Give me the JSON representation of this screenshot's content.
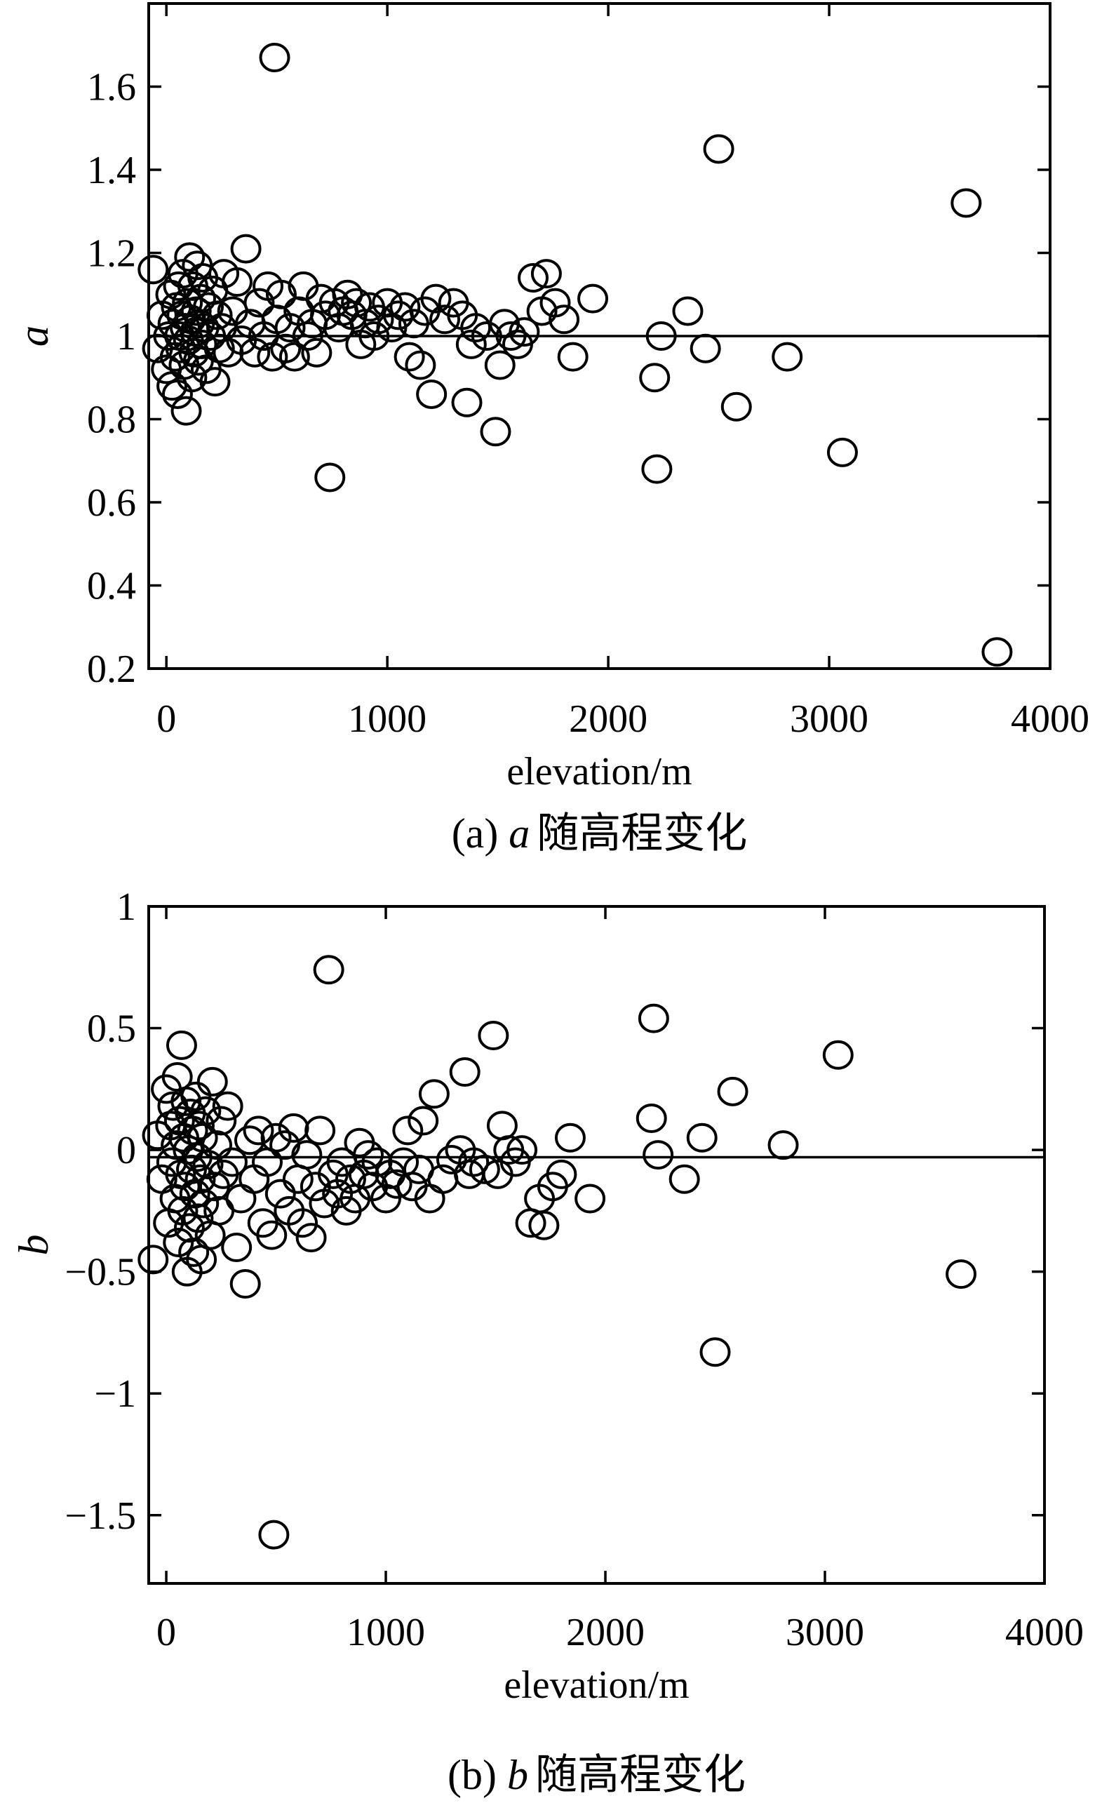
{
  "chart_data": [
    {
      "id": "a",
      "type": "scatter",
      "title": "",
      "xlabel": "elevation/m",
      "ylabel": "a",
      "caption": {
        "prefix": "(a) ",
        "var": "a",
        "suffix": "随高程变化"
      },
      "xlim": [
        -80,
        4000
      ],
      "ylim": [
        0.2,
        1.8
      ],
      "xticks": [
        0,
        1000,
        2000,
        3000,
        4000
      ],
      "xtick_labels": [
        "0",
        "1000",
        "2000",
        "3000",
        "4000"
      ],
      "yticks": [
        0.2,
        0.4,
        0.6,
        0.8,
        1.0,
        1.2,
        1.4,
        1.6
      ],
      "ytick_labels": [
        "0.2",
        "0.4",
        "0.6",
        "0.8",
        "1",
        "1.2",
        "1.4",
        "1.6"
      ],
      "reference_line_y": 1.0,
      "grid": false,
      "marker": "open-circle",
      "points": [
        [
          -60,
          1.16
        ],
        [
          -40,
          0.97
        ],
        [
          -20,
          1.05
        ],
        [
          0,
          0.92
        ],
        [
          10,
          1.0
        ],
        [
          20,
          1.1
        ],
        [
          25,
          0.88
        ],
        [
          30,
          1.03
        ],
        [
          40,
          0.95
        ],
        [
          45,
          1.07
        ],
        [
          50,
          0.86
        ],
        [
          55,
          1.12
        ],
        [
          60,
          1.0
        ],
        [
          65,
          0.97
        ],
        [
          70,
          1.05
        ],
        [
          75,
          1.15
        ],
        [
          80,
          0.93
        ],
        [
          85,
          1.02
        ],
        [
          90,
          0.82
        ],
        [
          95,
          1.08
        ],
        [
          100,
          0.99
        ],
        [
          105,
          1.19
        ],
        [
          110,
          1.04
        ],
        [
          115,
          0.9
        ],
        [
          120,
          1.12
        ],
        [
          125,
          0.96
        ],
        [
          130,
          1.01
        ],
        [
          135,
          1.06
        ],
        [
          140,
          1.17
        ],
        [
          145,
          0.94
        ],
        [
          150,
          1.03
        ],
        [
          155,
          1.09
        ],
        [
          160,
          0.98
        ],
        [
          165,
          1.14
        ],
        [
          170,
          1.02
        ],
        [
          180,
          0.92
        ],
        [
          190,
          1.07
        ],
        [
          200,
          1.0
        ],
        [
          210,
          1.11
        ],
        [
          220,
          0.89
        ],
        [
          230,
          1.05
        ],
        [
          240,
          0.97
        ],
        [
          250,
          1.02
        ],
        [
          260,
          1.15
        ],
        [
          280,
          0.96
        ],
        [
          300,
          1.06
        ],
        [
          320,
          1.13
        ],
        [
          340,
          0.99
        ],
        [
          360,
          1.21
        ],
        [
          380,
          1.03
        ],
        [
          400,
          0.96
        ],
        [
          420,
          1.08
        ],
        [
          440,
          1.0
        ],
        [
          460,
          1.12
        ],
        [
          480,
          0.95
        ],
        [
          490,
          1.67
        ],
        [
          500,
          1.04
        ],
        [
          520,
          1.1
        ],
        [
          540,
          0.97
        ],
        [
          560,
          1.02
        ],
        [
          580,
          0.95
        ],
        [
          600,
          1.06
        ],
        [
          620,
          1.12
        ],
        [
          640,
          1.0
        ],
        [
          660,
          1.03
        ],
        [
          680,
          0.96
        ],
        [
          700,
          1.09
        ],
        [
          720,
          1.05
        ],
        [
          740,
          0.66
        ],
        [
          760,
          1.08
        ],
        [
          780,
          1.02
        ],
        [
          800,
          1.06
        ],
        [
          820,
          1.1
        ],
        [
          840,
          1.05
        ],
        [
          860,
          1.08
        ],
        [
          880,
          0.98
        ],
        [
          900,
          1.03
        ],
        [
          920,
          1.07
        ],
        [
          940,
          1.0
        ],
        [
          960,
          1.04
        ],
        [
          1000,
          1.08
        ],
        [
          1020,
          1.02
        ],
        [
          1050,
          1.05
        ],
        [
          1080,
          1.07
        ],
        [
          1100,
          0.95
        ],
        [
          1120,
          1.03
        ],
        [
          1150,
          0.93
        ],
        [
          1170,
          1.06
        ],
        [
          1200,
          0.86
        ],
        [
          1220,
          1.09
        ],
        [
          1260,
          1.04
        ],
        [
          1300,
          1.08
        ],
        [
          1340,
          1.05
        ],
        [
          1360,
          0.84
        ],
        [
          1380,
          0.98
        ],
        [
          1400,
          1.02
        ],
        [
          1450,
          1.0
        ],
        [
          1490,
          0.77
        ],
        [
          1510,
          0.93
        ],
        [
          1530,
          1.03
        ],
        [
          1560,
          1.0
        ],
        [
          1590,
          0.98
        ],
        [
          1620,
          1.01
        ],
        [
          1660,
          1.14
        ],
        [
          1700,
          1.06
        ],
        [
          1720,
          1.15
        ],
        [
          1760,
          1.08
        ],
        [
          1800,
          1.04
        ],
        [
          1840,
          0.95
        ],
        [
          1930,
          1.09
        ],
        [
          2210,
          0.9
        ],
        [
          2220,
          0.68
        ],
        [
          2240,
          1.0
        ],
        [
          2360,
          1.06
        ],
        [
          2440,
          0.97
        ],
        [
          2500,
          1.45
        ],
        [
          2580,
          0.83
        ],
        [
          2810,
          0.95
        ],
        [
          3060,
          0.72
        ],
        [
          3620,
          1.32
        ],
        [
          3760,
          0.24
        ]
      ]
    },
    {
      "id": "b",
      "type": "scatter",
      "title": "",
      "xlabel": "elevation/m",
      "ylabel": "b",
      "caption": {
        "prefix": "(b) ",
        "var": "b",
        "suffix": "随高程变化"
      },
      "xlim": [
        -80,
        4000
      ],
      "ylim": [
        -1.78,
        1.0
      ],
      "xticks": [
        0,
        1000,
        2000,
        3000,
        4000
      ],
      "xtick_labels": [
        "0",
        "1000",
        "2000",
        "3000",
        "4000"
      ],
      "yticks": [
        -1.5,
        -1.0,
        -0.5,
        0,
        0.5,
        1.0
      ],
      "ytick_labels": [
        "−1.5",
        "−1",
        "−0.5",
        "0",
        "0.5",
        "1"
      ],
      "reference_line_y": -0.03,
      "grid": false,
      "marker": "open-circle",
      "points": [
        [
          -60,
          -0.45
        ],
        [
          -40,
          0.06
        ],
        [
          -20,
          -0.12
        ],
        [
          0,
          0.25
        ],
        [
          10,
          -0.3
        ],
        [
          20,
          0.1
        ],
        [
          25,
          -0.05
        ],
        [
          30,
          0.18
        ],
        [
          40,
          -0.2
        ],
        [
          45,
          0.02
        ],
        [
          50,
          0.3
        ],
        [
          55,
          -0.38
        ],
        [
          60,
          0.12
        ],
        [
          65,
          -0.1
        ],
        [
          70,
          0.43
        ],
        [
          75,
          -0.25
        ],
        [
          80,
          0.05
        ],
        [
          85,
          -0.15
        ],
        [
          90,
          0.2
        ],
        [
          95,
          -0.5
        ],
        [
          100,
          0.0
        ],
        [
          105,
          -0.32
        ],
        [
          110,
          0.15
        ],
        [
          115,
          -0.08
        ],
        [
          120,
          0.08
        ],
        [
          125,
          -0.42
        ],
        [
          130,
          -0.18
        ],
        [
          135,
          0.22
        ],
        [
          140,
          -0.03
        ],
        [
          145,
          -0.28
        ],
        [
          150,
          0.1
        ],
        [
          155,
          -0.12
        ],
        [
          160,
          -0.45
        ],
        [
          165,
          0.05
        ],
        [
          170,
          -0.22
        ],
        [
          180,
          0.16
        ],
        [
          190,
          -0.06
        ],
        [
          200,
          -0.35
        ],
        [
          210,
          0.28
        ],
        [
          220,
          -0.15
        ],
        [
          230,
          0.02
        ],
        [
          240,
          -0.25
        ],
        [
          250,
          0.12
        ],
        [
          260,
          -0.1
        ],
        [
          280,
          0.18
        ],
        [
          300,
          -0.05
        ],
        [
          320,
          -0.4
        ],
        [
          340,
          -0.2
        ],
        [
          360,
          -0.55
        ],
        [
          380,
          0.04
        ],
        [
          400,
          -0.12
        ],
        [
          420,
          0.08
        ],
        [
          440,
          -0.3
        ],
        [
          460,
          -0.05
        ],
        [
          480,
          -0.35
        ],
        [
          490,
          -1.58
        ],
        [
          500,
          0.05
        ],
        [
          520,
          -0.18
        ],
        [
          540,
          0.02
        ],
        [
          560,
          -0.25
        ],
        [
          580,
          0.09
        ],
        [
          600,
          -0.12
        ],
        [
          620,
          -0.3
        ],
        [
          640,
          -0.02
        ],
        [
          660,
          -0.36
        ],
        [
          680,
          -0.15
        ],
        [
          700,
          0.08
        ],
        [
          720,
          -0.22
        ],
        [
          740,
          0.74
        ],
        [
          760,
          -0.1
        ],
        [
          780,
          -0.18
        ],
        [
          800,
          -0.05
        ],
        [
          820,
          -0.25
        ],
        [
          840,
          -0.12
        ],
        [
          860,
          -0.2
        ],
        [
          880,
          0.03
        ],
        [
          900,
          -0.1
        ],
        [
          920,
          -0.02
        ],
        [
          940,
          -0.15
        ],
        [
          960,
          -0.05
        ],
        [
          1000,
          -0.2
        ],
        [
          1020,
          -0.1
        ],
        [
          1050,
          -0.14
        ],
        [
          1080,
          -0.05
        ],
        [
          1100,
          0.08
        ],
        [
          1120,
          -0.15
        ],
        [
          1150,
          -0.08
        ],
        [
          1170,
          0.12
        ],
        [
          1200,
          -0.2
        ],
        [
          1220,
          0.23
        ],
        [
          1260,
          -0.12
        ],
        [
          1300,
          -0.04
        ],
        [
          1340,
          0.0
        ],
        [
          1360,
          0.32
        ],
        [
          1380,
          -0.1
        ],
        [
          1400,
          -0.05
        ],
        [
          1450,
          -0.08
        ],
        [
          1490,
          0.47
        ],
        [
          1510,
          -0.1
        ],
        [
          1530,
          0.1
        ],
        [
          1560,
          0.0
        ],
        [
          1590,
          -0.05
        ],
        [
          1620,
          0.0
        ],
        [
          1660,
          -0.3
        ],
        [
          1700,
          -0.2
        ],
        [
          1720,
          -0.31
        ],
        [
          1760,
          -0.15
        ],
        [
          1800,
          -0.1
        ],
        [
          1840,
          0.05
        ],
        [
          1930,
          -0.2
        ],
        [
          2210,
          0.13
        ],
        [
          2220,
          0.54
        ],
        [
          2240,
          -0.02
        ],
        [
          2360,
          -0.12
        ],
        [
          2440,
          0.05
        ],
        [
          2500,
          -0.83
        ],
        [
          2580,
          0.24
        ],
        [
          2810,
          0.02
        ],
        [
          3060,
          0.39
        ],
        [
          3620,
          -0.51
        ]
      ]
    }
  ]
}
